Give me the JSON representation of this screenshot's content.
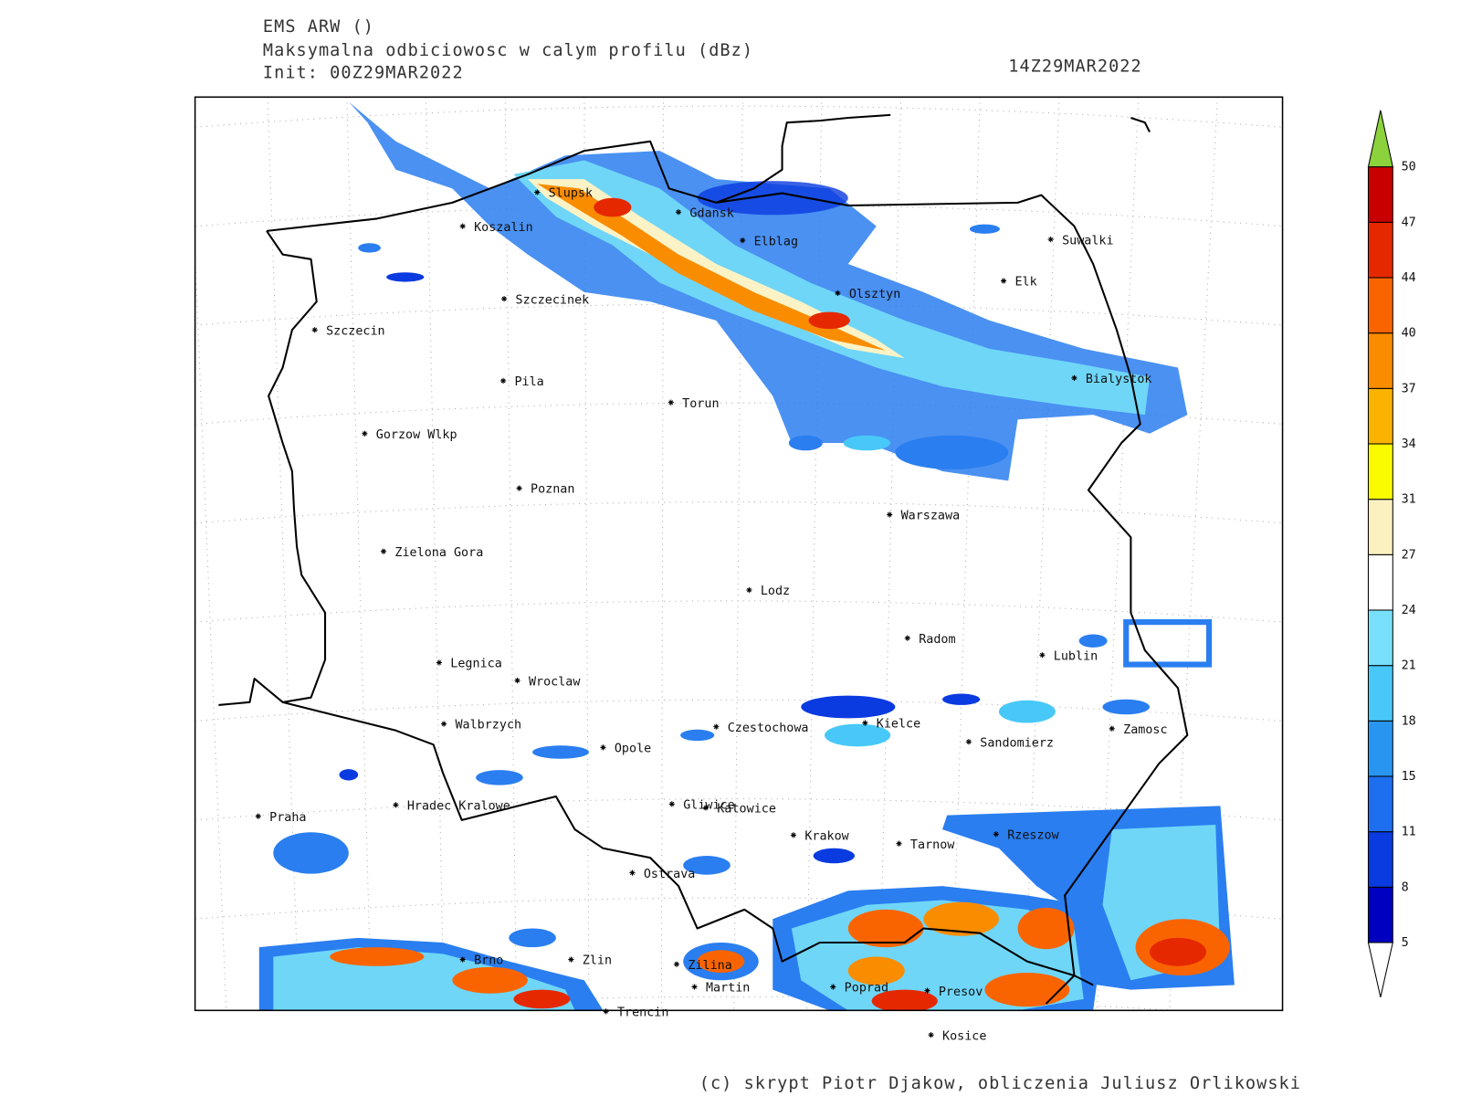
{
  "header": {
    "model": "EMS ARW ()",
    "field": "Maksymalna odbiciowosc w calym profilu (dBz)",
    "init": "Init: 00Z29MAR2022",
    "valid": "14Z29MAR2022"
  },
  "footer": "(c) skrypt Piotr Djakow, obliczenia Juliusz Orlikowski",
  "cities": [
    "Slupsk",
    "Gdansk",
    "Koszalin",
    "Elblag",
    "Suwalki",
    "Elk",
    "Szczecinek",
    "Olsztyn",
    "Szczecin",
    "Bialystok",
    "Pila",
    "Torun",
    "Gorzow Wlkp",
    "Poznan",
    "Warszawa",
    "Zielona Gora",
    "Lodz",
    "Radom",
    "Lublin",
    "Legnica",
    "Wroclaw",
    "Walbrzych",
    "Czestochowa",
    "Kielce",
    "Zamosc",
    "Opole",
    "Sandomierz",
    "Praha",
    "Hradec Kralowe",
    "Gliwice",
    "Katowice",
    "Krakow",
    "Tarnow",
    "Rzeszow",
    "Ostrava",
    "Brno",
    "Zlin",
    "Zilina",
    "Martin",
    "Poprad",
    "Presov",
    "Trencin",
    "Kosice"
  ],
  "colorbar": {
    "levels": [
      5,
      8,
      11,
      15,
      18,
      21,
      24,
      27,
      31,
      34,
      37,
      40,
      44,
      47,
      50
    ],
    "band_colors": [
      "#0000c0",
      "#0a3be0",
      "#1e6ef0",
      "#2896f0",
      "#48c8f8",
      "#78e0fa",
      "#ffffff",
      "#faf0c0",
      "#fafa00",
      "#fab400",
      "#fa8c00",
      "#fa6400",
      "#e62800",
      "#c80000"
    ],
    "under_color": "#ffffff",
    "over_color": "#8cd23c"
  }
}
